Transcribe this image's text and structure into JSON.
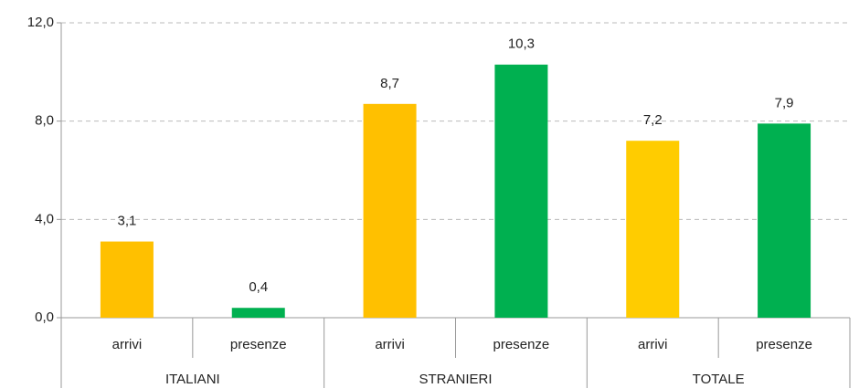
{
  "chart_data": {
    "type": "bar",
    "categories": [
      "arrivi",
      "presenze",
      "arrivi",
      "presenze",
      "arrivi",
      "presenze"
    ],
    "groups": [
      "ITALIANI",
      "STRANIERI",
      "TOTALE"
    ],
    "values": [
      3.1,
      0.4,
      8.7,
      10.3,
      7.2,
      7.9
    ],
    "value_labels": [
      "3,1",
      "0,4",
      "8,7",
      "10,3",
      "7,2",
      "7,9"
    ],
    "colors": [
      "#ffc000",
      "#00b050",
      "#ffc000",
      "#00b050",
      "#ffcc00",
      "#00b050"
    ],
    "ylim": [
      0,
      12
    ],
    "yticks": [
      {
        "value": 0,
        "label": "0,0"
      },
      {
        "value": 4,
        "label": "4,0"
      },
      {
        "value": 8,
        "label": "8,0"
      },
      {
        "value": 12,
        "label": "12,0"
      }
    ],
    "grid": true
  }
}
